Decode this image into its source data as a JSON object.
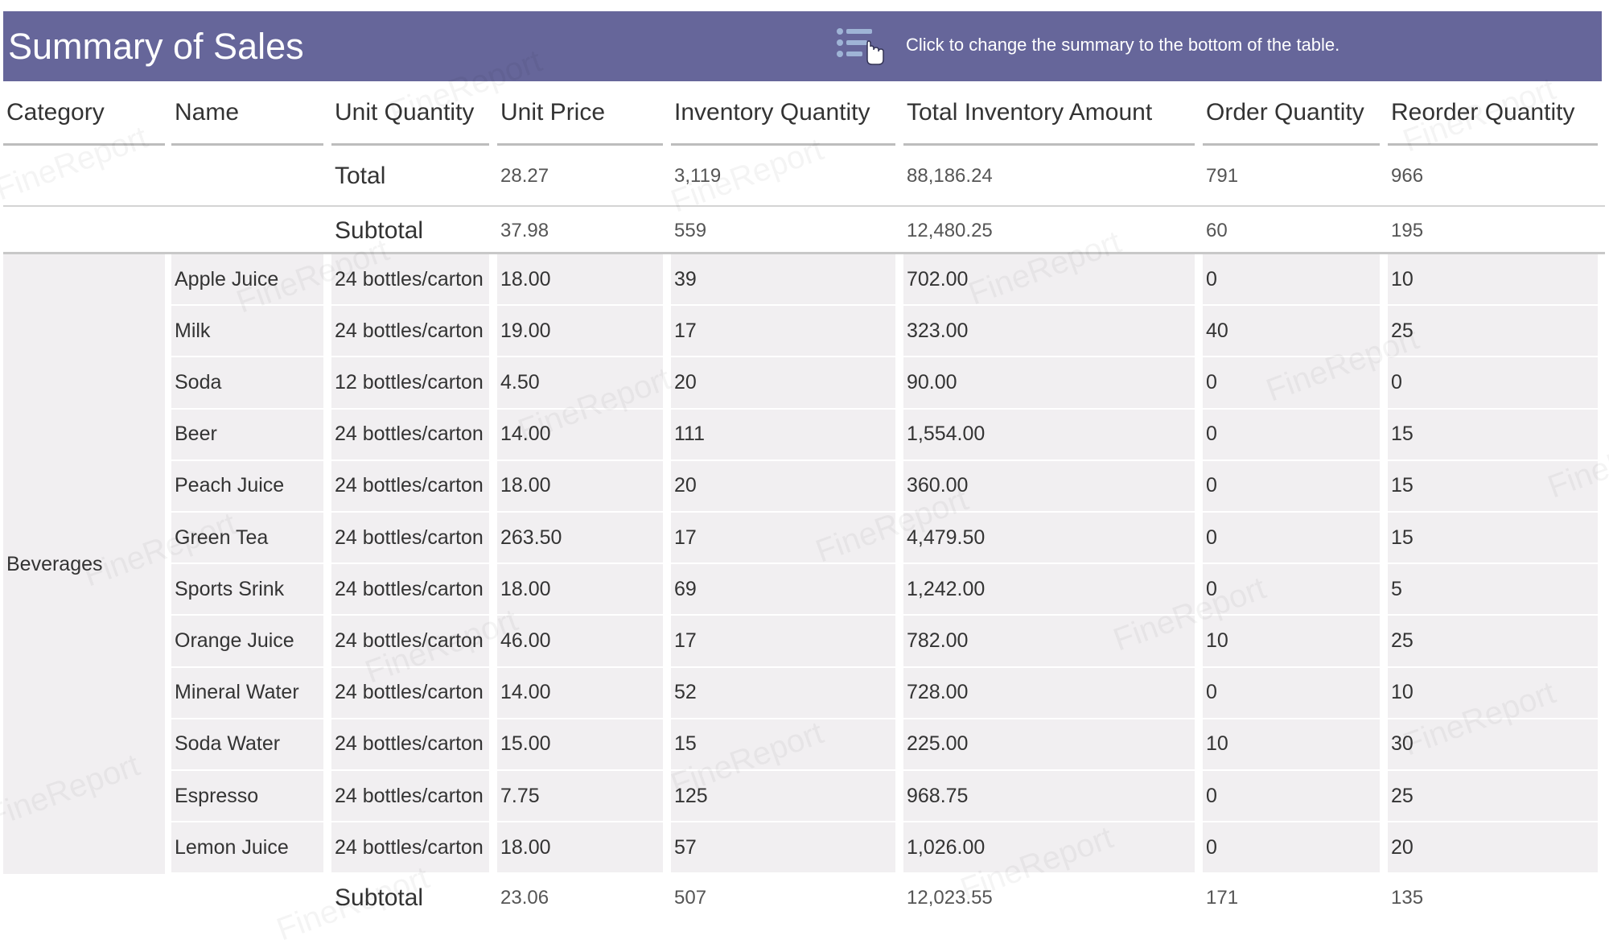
{
  "header": {
    "title": "Summary of Sales",
    "toggle_hint": "Click to change the summary to the bottom of the table.",
    "icon": "list-pointer-icon",
    "background": "#66669a"
  },
  "table": {
    "columns": [
      "Category",
      "Name",
      "Unit Quantity",
      "Unit Price",
      "Inventory Quantity",
      "Total Inventory Amount",
      "Order Quantity",
      "Reorder Quantity"
    ],
    "total": {
      "label": "Total",
      "unit_price": "28.27",
      "inventory_quantity": "3,119",
      "total_inventory_amount": "88,186.24",
      "order_quantity": "791",
      "reorder_quantity": "966"
    },
    "groups": [
      {
        "category": "Beverages",
        "subtotal": {
          "label": "Subtotal",
          "unit_price": "37.98",
          "inventory_quantity": "559",
          "total_inventory_amount": "12,480.25",
          "order_quantity": "60",
          "reorder_quantity": "195"
        },
        "rows": [
          [
            "Apple Juice",
            "24 bottles/carton",
            "18.00",
            "39",
            "702.00",
            "0",
            "10"
          ],
          [
            "Milk",
            "24 bottles/carton",
            "19.00",
            "17",
            "323.00",
            "40",
            "25"
          ],
          [
            "Soda",
            "12 bottles/carton",
            "4.50",
            "20",
            "90.00",
            "0",
            "0"
          ],
          [
            "Beer",
            "24 bottles/carton",
            "14.00",
            "111",
            "1,554.00",
            "0",
            "15"
          ],
          [
            "Peach Juice",
            "24 bottles/carton",
            "18.00",
            "20",
            "360.00",
            "0",
            "15"
          ],
          [
            "Green Tea",
            "24 bottles/carton",
            "263.50",
            "17",
            "4,479.50",
            "0",
            "15"
          ],
          [
            "Sports Srink",
            "24 bottles/carton",
            "18.00",
            "69",
            "1,242.00",
            "0",
            "5"
          ],
          [
            "Orange Juice",
            "24 bottles/carton",
            "46.00",
            "17",
            "782.00",
            "10",
            "25"
          ],
          [
            "Mineral Water",
            "24 bottles/carton",
            "14.00",
            "52",
            "728.00",
            "0",
            "10"
          ],
          [
            "Soda Water",
            "24 bottles/carton",
            "15.00",
            "15",
            "225.00",
            "10",
            "30"
          ],
          [
            "Espresso",
            "24 bottles/carton",
            "7.75",
            "125",
            "968.75",
            "0",
            "25"
          ],
          [
            "Lemon Juice",
            "24 bottles/carton",
            "18.00",
            "57",
            "1,026.00",
            "0",
            "20"
          ]
        ]
      },
      {
        "category": "",
        "subtotal": {
          "label": "Subtotal",
          "unit_price": "23.06",
          "inventory_quantity": "507",
          "total_inventory_amount": "12,023.55",
          "order_quantity": "171",
          "reorder_quantity": "135"
        },
        "rows": []
      }
    ]
  },
  "watermark": {
    "text": "FineReport"
  }
}
